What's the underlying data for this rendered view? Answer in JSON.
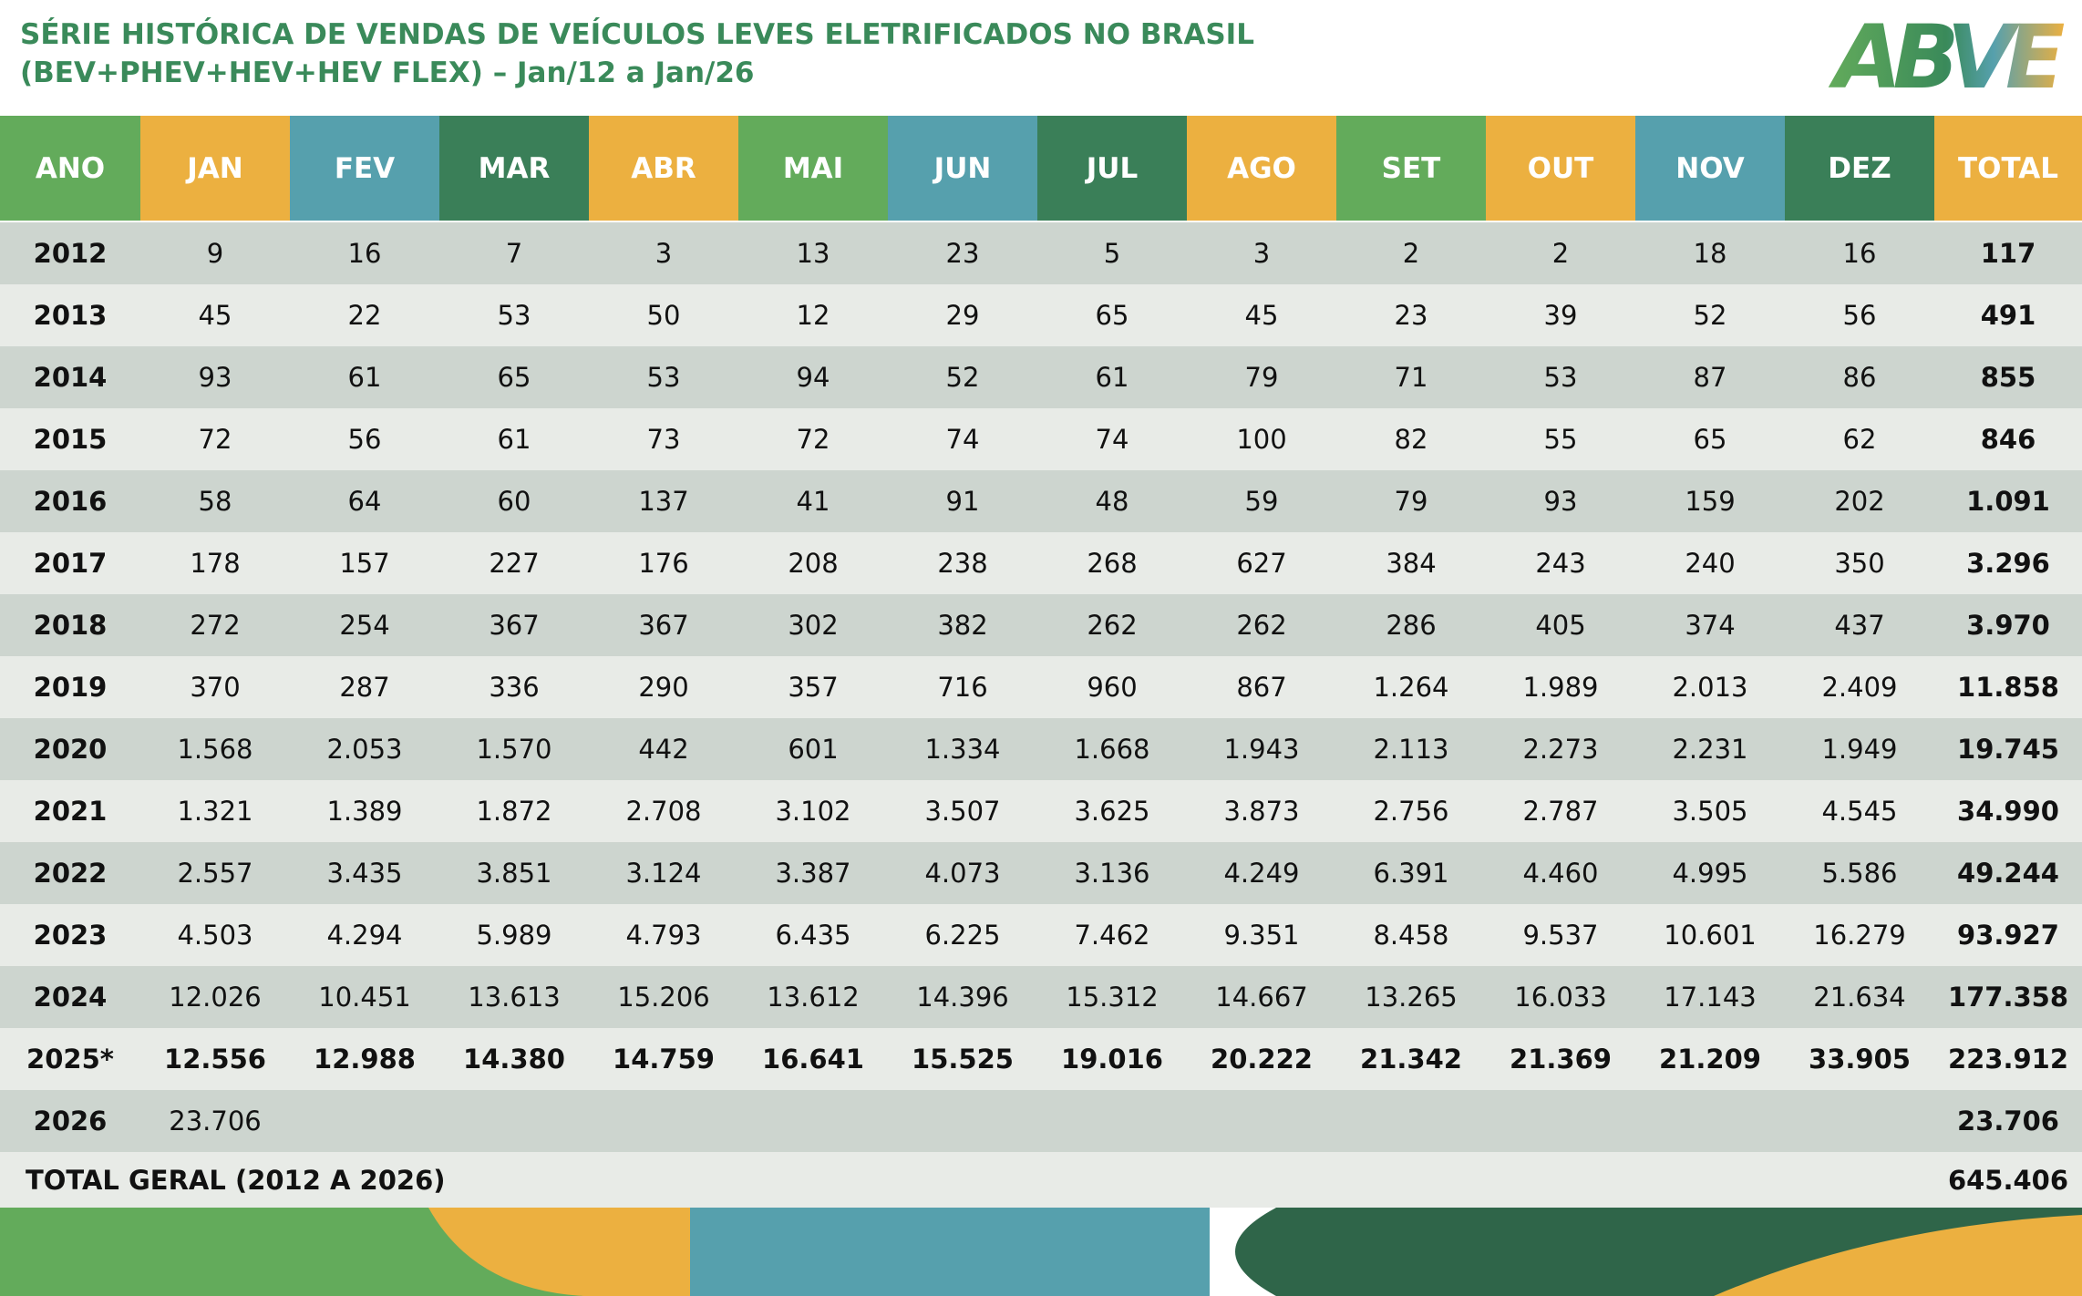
{
  "header": {
    "title_line1": "SÉRIE HISTÓRICA DE VENDAS DE VEÍCULOS LEVES ELETRIFICADOS NO BRASIL",
    "title_line2": "(BEV+PHEV+HEV+HEV FLEX) – Jan/12 a Jan/26",
    "logo": "ABVE"
  },
  "table": {
    "columns": [
      "ANO",
      "JAN",
      "FEV",
      "MAR",
      "ABR",
      "MAI",
      "JUN",
      "JUL",
      "AGO",
      "SET",
      "OUT",
      "NOV",
      "DEZ",
      "TOTAL"
    ],
    "rows": [
      {
        "year": "2012",
        "months": [
          "9",
          "16",
          "7",
          "3",
          "13",
          "23",
          "5",
          "3",
          "2",
          "2",
          "18",
          "16"
        ],
        "total": "117"
      },
      {
        "year": "2013",
        "months": [
          "45",
          "22",
          "53",
          "50",
          "12",
          "29",
          "65",
          "45",
          "23",
          "39",
          "52",
          "56"
        ],
        "total": "491"
      },
      {
        "year": "2014",
        "months": [
          "93",
          "61",
          "65",
          "53",
          "94",
          "52",
          "61",
          "79",
          "71",
          "53",
          "87",
          "86"
        ],
        "total": "855"
      },
      {
        "year": "2015",
        "months": [
          "72",
          "56",
          "61",
          "73",
          "72",
          "74",
          "74",
          "100",
          "82",
          "55",
          "65",
          "62"
        ],
        "total": "846"
      },
      {
        "year": "2016",
        "months": [
          "58",
          "64",
          "60",
          "137",
          "41",
          "91",
          "48",
          "59",
          "79",
          "93",
          "159",
          "202"
        ],
        "total": "1.091"
      },
      {
        "year": "2017",
        "months": [
          "178",
          "157",
          "227",
          "176",
          "208",
          "238",
          "268",
          "627",
          "384",
          "243",
          "240",
          "350"
        ],
        "total": "3.296"
      },
      {
        "year": "2018",
        "months": [
          "272",
          "254",
          "367",
          "367",
          "302",
          "382",
          "262",
          "262",
          "286",
          "405",
          "374",
          "437"
        ],
        "total": "3.970"
      },
      {
        "year": "2019",
        "months": [
          "370",
          "287",
          "336",
          "290",
          "357",
          "716",
          "960",
          "867",
          "1.264",
          "1.989",
          "2.013",
          "2.409"
        ],
        "total": "11.858"
      },
      {
        "year": "2020",
        "months": [
          "1.568",
          "2.053",
          "1.570",
          "442",
          "601",
          "1.334",
          "1.668",
          "1.943",
          "2.113",
          "2.273",
          "2.231",
          "1.949"
        ],
        "total": "19.745"
      },
      {
        "year": "2021",
        "months": [
          "1.321",
          "1.389",
          "1.872",
          "2.708",
          "3.102",
          "3.507",
          "3.625",
          "3.873",
          "2.756",
          "2.787",
          "3.505",
          "4.545"
        ],
        "total": "34.990"
      },
      {
        "year": "2022",
        "months": [
          "2.557",
          "3.435",
          "3.851",
          "3.124",
          "3.387",
          "4.073",
          "3.136",
          "4.249",
          "6.391",
          "4.460",
          "4.995",
          "5.586"
        ],
        "total": "49.244"
      },
      {
        "year": "2023",
        "months": [
          "4.503",
          "4.294",
          "5.989",
          "4.793",
          "6.435",
          "6.225",
          "7.462",
          "9.351",
          "8.458",
          "9.537",
          "10.601",
          "16.279"
        ],
        "total": "93.927"
      },
      {
        "year": "2024",
        "months": [
          "12.026",
          "10.451",
          "13.613",
          "15.206",
          "13.612",
          "14.396",
          "15.312",
          "14.667",
          "13.265",
          "16.033",
          "17.143",
          "21.634"
        ],
        "total": "177.358"
      },
      {
        "year": "2025*",
        "months": [
          "12.556",
          "12.988",
          "14.380",
          "14.759",
          "16.641",
          "15.525",
          "19.016",
          "20.222",
          "21.342",
          "21.369",
          "21.209",
          "33.905"
        ],
        "total": "223.912"
      },
      {
        "year": "2026",
        "months": [
          "23.706"
        ],
        "total": "23.706"
      }
    ],
    "grand_total": {
      "label": "TOTAL GERAL (2012 A 2026)",
      "value": "645.406"
    }
  }
}
